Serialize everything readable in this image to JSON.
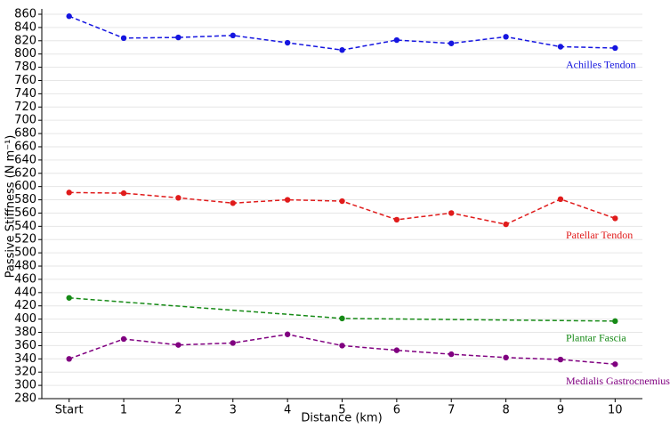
{
  "chart_data": {
    "type": "line",
    "x_label": "Distance (km)",
    "y_label": "Passive Stiffness (N m⁻¹)",
    "xlim": [
      -0.5,
      10.5
    ],
    "xticks": [
      {
        "value": 0,
        "label": "Start"
      },
      1,
      2,
      3,
      4,
      5,
      6,
      7,
      8,
      9,
      10
    ],
    "ylim": [
      280,
      860
    ],
    "yticks": [
      280,
      300,
      320,
      340,
      360,
      380,
      400,
      420,
      440,
      460,
      480,
      500,
      520,
      540,
      560,
      580,
      600,
      620,
      640,
      660,
      680,
      700,
      720,
      740,
      760,
      780,
      800,
      820,
      840,
      860
    ],
    "grid": true,
    "series": [
      {
        "name": "Achilles  Tendon",
        "color": "#1515e0",
        "x": [
          0,
          1,
          2,
          3,
          4,
          5,
          6,
          7,
          8,
          9,
          10
        ],
        "values": [
          857,
          824,
          825,
          828,
          817,
          806,
          821,
          816,
          826,
          811,
          809
        ]
      },
      {
        "name": "Patellar  Tendon",
        "color": "#e01b1b",
        "x": [
          0,
          1,
          2,
          3,
          4,
          5,
          6,
          7,
          8,
          9,
          10
        ],
        "values": [
          591,
          590,
          583,
          575,
          580,
          578,
          550,
          560,
          543,
          581,
          552
        ]
      },
      {
        "name": "Plantar  Fascia",
        "color": "#168a16",
        "x": [
          0,
          5,
          10
        ],
        "values": [
          432,
          401,
          397
        ]
      },
      {
        "name": "Medialis  Gastrocnemius",
        "color": "#800080",
        "x": [
          0,
          1,
          2,
          3,
          4,
          5,
          6,
          7,
          8,
          9,
          10
        ],
        "values": [
          340,
          370,
          361,
          364,
          377,
          360,
          353,
          347,
          342,
          339,
          332
        ]
      }
    ]
  }
}
